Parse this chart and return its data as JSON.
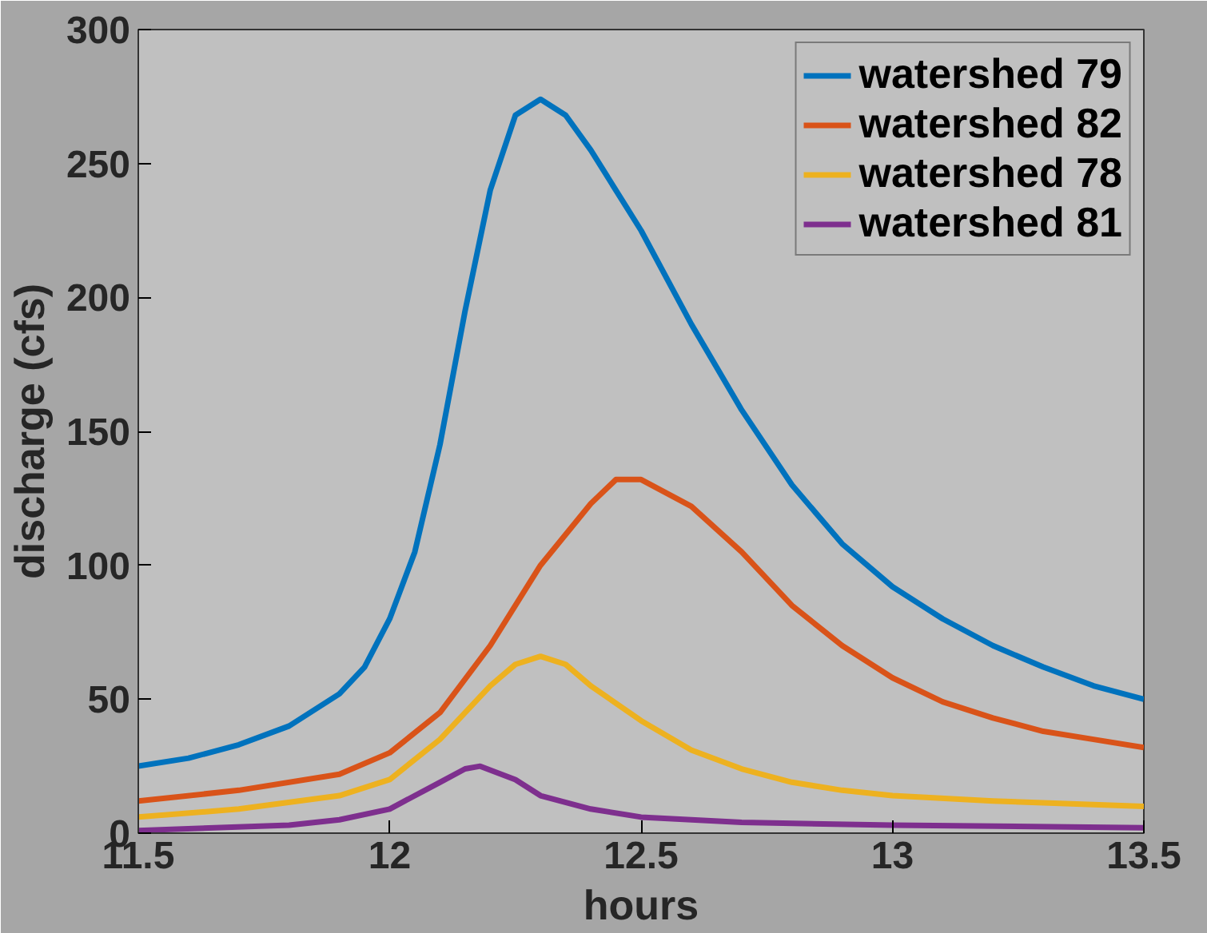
{
  "chart_data": {
    "type": "line",
    "xlabel": "hours",
    "ylabel": "discharge (cfs)",
    "xlim": [
      11.5,
      13.5
    ],
    "xticks": [
      11.5,
      12,
      12.5,
      13,
      13.5
    ],
    "ylim": [
      0,
      300
    ],
    "yticks": [
      0,
      50,
      100,
      150,
      200,
      250,
      300
    ],
    "grid": false,
    "legend": "top right",
    "marker": "none",
    "line_style": "solid",
    "series": [
      {
        "name": "watershed 79",
        "color": "#0072bd",
        "x": [
          11.5,
          11.6,
          11.7,
          11.8,
          11.9,
          11.95,
          12.0,
          12.05,
          12.1,
          12.15,
          12.2,
          12.25,
          12.3,
          12.35,
          12.4,
          12.5,
          12.6,
          12.7,
          12.8,
          12.9,
          13.0,
          13.1,
          13.2,
          13.3,
          13.4,
          13.5
        ],
        "values": [
          25,
          28,
          33,
          40,
          52,
          62,
          80,
          105,
          145,
          195,
          240,
          268,
          274,
          268,
          255,
          225,
          190,
          158,
          130,
          108,
          92,
          80,
          70,
          62,
          55,
          50
        ]
      },
      {
        "name": "watershed 82",
        "color": "#d95319",
        "x": [
          11.5,
          11.7,
          11.9,
          12.0,
          12.1,
          12.2,
          12.3,
          12.4,
          12.45,
          12.5,
          12.6,
          12.7,
          12.8,
          12.9,
          13.0,
          13.1,
          13.2,
          13.3,
          13.4,
          13.5
        ],
        "values": [
          12,
          16,
          22,
          30,
          45,
          70,
          100,
          123,
          132,
          132,
          122,
          105,
          85,
          70,
          58,
          49,
          43,
          38,
          35,
          32
        ]
      },
      {
        "name": "watershed 78",
        "color": "#edb120",
        "x": [
          11.5,
          11.7,
          11.9,
          12.0,
          12.1,
          12.2,
          12.25,
          12.3,
          12.35,
          12.4,
          12.5,
          12.6,
          12.7,
          12.8,
          12.9,
          13.0,
          13.2,
          13.5
        ],
        "values": [
          6,
          9,
          14,
          20,
          35,
          55,
          63,
          66,
          63,
          55,
          42,
          31,
          24,
          19,
          16,
          14,
          12,
          10
        ]
      },
      {
        "name": "watershed 81",
        "color": "#7e2f8e",
        "x": [
          11.5,
          11.8,
          11.9,
          12.0,
          12.1,
          12.15,
          12.18,
          12.25,
          12.3,
          12.4,
          12.5,
          12.7,
          13.0,
          13.5
        ],
        "values": [
          1,
          3,
          5,
          9,
          19,
          24,
          25,
          20,
          14,
          9,
          6,
          4,
          3,
          2
        ]
      }
    ]
  }
}
